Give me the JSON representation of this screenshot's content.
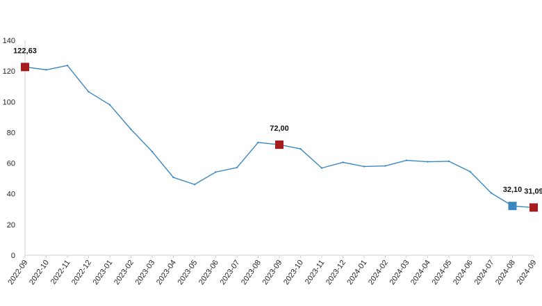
{
  "chart_data": {
    "type": "line",
    "title": "",
    "xlabel": "",
    "ylabel": "",
    "ylim": [
      0,
      140
    ],
    "yticks": [
      0,
      20,
      40,
      60,
      80,
      100,
      120,
      140
    ],
    "grid": false,
    "legend": "none",
    "line_color": "#3a87c0",
    "categories": [
      "2022-09",
      "2022-10",
      "2022-11",
      "2022-12",
      "2023-01",
      "2023-02",
      "2023-03",
      "2023-04",
      "2023-05",
      "2023-06",
      "2023-07",
      "2023-08",
      "2023-09",
      "2023-10",
      "2023-11",
      "2023-12",
      "2024-01",
      "2024-02",
      "2024-03",
      "2024-04",
      "2024-05",
      "2024-06",
      "2024-07",
      "2024-08",
      "2024-09"
    ],
    "series": [
      {
        "values": [
          122.63,
          120.8,
          123.6,
          106.5,
          98.0,
          82.0,
          67.5,
          50.7,
          46.1,
          54.2,
          57.1,
          73.5,
          72.0,
          69.3,
          56.8,
          60.5,
          57.8,
          58.2,
          61.8,
          60.9,
          61.2,
          54.5,
          40.5,
          32.1,
          31.09
        ]
      }
    ],
    "highlights": [
      {
        "index": 0,
        "label": "122,63",
        "color": "#a51c1c"
      },
      {
        "index": 12,
        "label": "72,00",
        "color": "#a51c1c"
      },
      {
        "index": 23,
        "label": "32,10",
        "color": "#3a87c0"
      },
      {
        "index": 24,
        "label": "31,09",
        "color": "#a51c1c"
      }
    ]
  }
}
